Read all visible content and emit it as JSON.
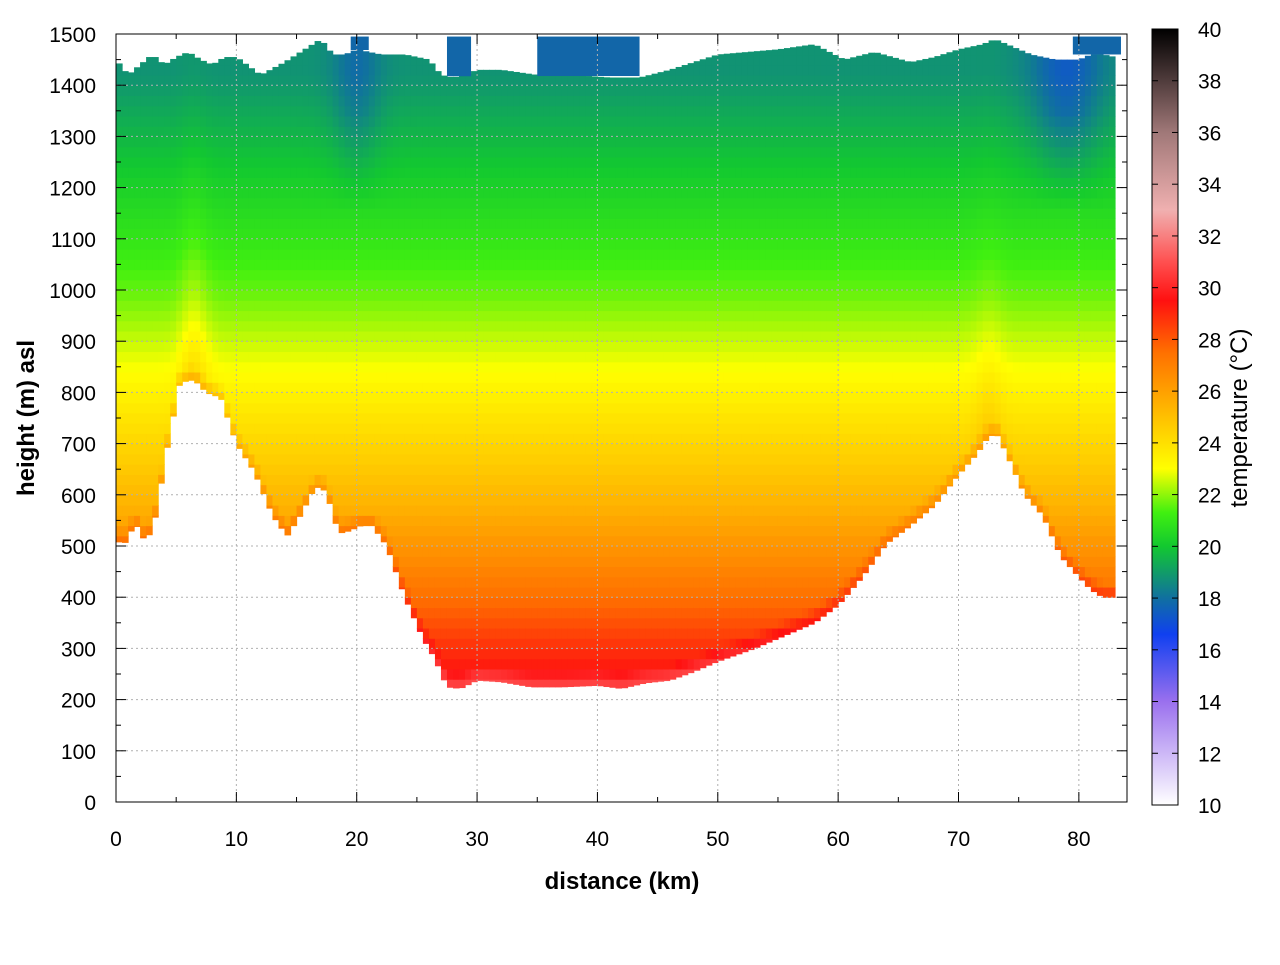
{
  "chart_data": {
    "type": "heatmap",
    "title": "",
    "xlabel": "distance (km)",
    "ylabel": "height (m) asl",
    "xlim": [
      0,
      84
    ],
    "ylim": [
      0,
      1500
    ],
    "grid": true,
    "x_ticks": [
      0,
      10,
      20,
      30,
      40,
      50,
      60,
      70,
      80
    ],
    "y_ticks": [
      0,
      100,
      200,
      300,
      400,
      500,
      600,
      700,
      800,
      900,
      1000,
      1100,
      1200,
      1300,
      1400,
      1500
    ],
    "colorbar": {
      "label": "temperature (°C)",
      "range": [
        10,
        40
      ],
      "ticks": [
        10,
        12,
        14,
        16,
        18,
        20,
        22,
        24,
        26,
        28,
        30,
        32,
        34,
        36,
        38,
        40
      ],
      "stops": [
        {
          "value": 10,
          "color": "#ffffff"
        },
        {
          "value": 14,
          "color": "#9a70ee"
        },
        {
          "value": 16.6,
          "color": "#1040f0"
        },
        {
          "value": 18,
          "color": "#1070a0"
        },
        {
          "value": 20,
          "color": "#12c830"
        },
        {
          "value": 21.3,
          "color": "#40f010"
        },
        {
          "value": 23,
          "color": "#ffff00"
        },
        {
          "value": 25,
          "color": "#ffc000"
        },
        {
          "value": 27.5,
          "color": "#ff7000"
        },
        {
          "value": 29.5,
          "color": "#ff1010"
        },
        {
          "value": 31,
          "color": "#ff5050"
        },
        {
          "value": 33,
          "color": "#f0b0b0"
        },
        {
          "value": 36,
          "color": "#a07878"
        },
        {
          "value": 40,
          "color": "#000000"
        }
      ]
    },
    "terrain_profile": {
      "distance_km": [
        0,
        0.7,
        1.6,
        2.5,
        3.3,
        4.3,
        5.3,
        6.5,
        7.5,
        8.7,
        10,
        11.5,
        13,
        14.2,
        15.3,
        16.3,
        17,
        17.6,
        18.5,
        19.4,
        20.3,
        21.3,
        22.5,
        24,
        25.5,
        26.5,
        27.5,
        28.6,
        30,
        32,
        34.5,
        37,
        40,
        42,
        44,
        46,
        48,
        50,
        53,
        56,
        58,
        60,
        62,
        64,
        66,
        68,
        70,
        71.5,
        72.5,
        73.2,
        74,
        75.5,
        77,
        78.5,
        80,
        81,
        82,
        83
      ],
      "ground_height_m": [
        510,
        505,
        545,
        505,
        560,
        700,
        820,
        825,
        800,
        790,
        700,
        645,
        560,
        520,
        560,
        605,
        620,
        595,
        525,
        530,
        540,
        540,
        500,
        400,
        320,
        280,
        225,
        222,
        238,
        235,
        225,
        225,
        228,
        222,
        233,
        238,
        255,
        275,
        300,
        330,
        350,
        385,
        440,
        505,
        540,
        580,
        640,
        680,
        715,
        718,
        680,
        600,
        560,
        480,
        440,
        415,
        400,
        400
      ]
    },
    "temperature_field": {
      "reference_column": [
        {
          "height_m": 250,
          "temp_c": 29.5
        },
        {
          "height_m": 400,
          "temp_c": 27.5
        },
        {
          "height_m": 600,
          "temp_c": 25.2
        },
        {
          "height_m": 800,
          "temp_c": 23.4
        },
        {
          "height_m": 1000,
          "temp_c": 21.6
        },
        {
          "height_m": 1200,
          "temp_c": 20.3
        },
        {
          "height_m": 1300,
          "temp_c": 19.6
        },
        {
          "height_m": 1420,
          "temp_c": 18.8
        }
      ],
      "cool_features": [
        {
          "name": "cold-tongue-left",
          "x_km": 20,
          "width_km": 4,
          "max_cooling_c": 0.9,
          "top_m": 1500,
          "bottom_m": 1150
        },
        {
          "name": "cold-tongue-right",
          "x_km": 79,
          "width_km": 6,
          "max_cooling_c": 1.4,
          "top_m": 1500,
          "bottom_m": 850
        }
      ],
      "warm_features": [
        {
          "name": "ridge-plume-west",
          "x_km": 6.5,
          "width_km": 2.5,
          "max_warming_c": 1.2
        },
        {
          "name": "ridge-plume-east",
          "x_km": 72.5,
          "width_km": 2.5,
          "max_warming_c": 0.7
        }
      ],
      "upper_boundary": {
        "distance_km": [
          0,
          1,
          2,
          3,
          4,
          5,
          6,
          7,
          8,
          9,
          10,
          12,
          14,
          16,
          17,
          18,
          19,
          20,
          22,
          24,
          26,
          27,
          28,
          29,
          30,
          32,
          35,
          38,
          41,
          43.5,
          46,
          50,
          55,
          58,
          60.5,
          63,
          66,
          68,
          70,
          72,
          73,
          74,
          76,
          78,
          80,
          81,
          82,
          83
        ],
        "height_m": [
          1450,
          1420,
          1440,
          1460,
          1440,
          1455,
          1465,
          1450,
          1440,
          1455,
          1455,
          1420,
          1445,
          1475,
          1490,
          1460,
          1460,
          1470,
          1460,
          1460,
          1450,
          1420,
          1415,
          1420,
          1430,
          1430,
          1420,
          1420,
          1415,
          1415,
          1430,
          1460,
          1470,
          1480,
          1450,
          1465,
          1445,
          1455,
          1470,
          1480,
          1490,
          1480,
          1460,
          1450,
          1450,
          1460,
          1460,
          1455
        ]
      },
      "cap_blocks_km": [
        [
          27.5,
          29.5
        ],
        [
          35,
          43.5
        ],
        [
          19.5,
          21
        ],
        [
          79.5,
          83.5
        ]
      ]
    }
  }
}
